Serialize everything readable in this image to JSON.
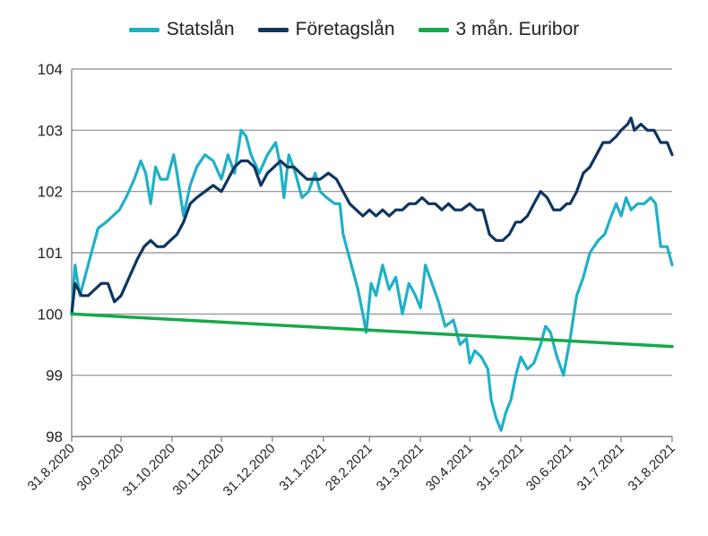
{
  "chart_data": {
    "type": "line",
    "title": "",
    "xlabel": "",
    "ylabel": "",
    "ylim": [
      98,
      104
    ],
    "yticks": [
      "104",
      "103",
      "102",
      "101",
      "100",
      "99",
      "98"
    ],
    "x_range": [
      "2020-08-31",
      "2021-08-31"
    ],
    "xticks": [
      "31.8.2020",
      "30.9.2020",
      "31.10.2020",
      "30.11.2020",
      "31.12.2020",
      "31.1.2021",
      "28.2.2021",
      "31.3.2021",
      "30.4.2021",
      "31.5.2021",
      "30.6.2021",
      "31.7.2021",
      "31.8.2021"
    ],
    "grid": true,
    "legend": "top",
    "series": [
      {
        "name": "Statslån",
        "color": "#1fb0c8",
        "points": [
          [
            "2020-08-31",
            100.0
          ],
          [
            "2020-09-02",
            100.8
          ],
          [
            "2020-09-05",
            100.3
          ],
          [
            "2020-09-08",
            100.6
          ],
          [
            "2020-09-12",
            101.0
          ],
          [
            "2020-09-16",
            101.4
          ],
          [
            "2020-09-21",
            101.5
          ],
          [
            "2020-09-25",
            101.6
          ],
          [
            "2020-09-29",
            101.7
          ],
          [
            "2020-10-03",
            101.9
          ],
          [
            "2020-10-08",
            102.2
          ],
          [
            "2020-10-12",
            102.5
          ],
          [
            "2020-10-15",
            102.3
          ],
          [
            "2020-10-18",
            101.8
          ],
          [
            "2020-10-21",
            102.4
          ],
          [
            "2020-10-24",
            102.2
          ],
          [
            "2020-10-28",
            102.2
          ],
          [
            "2020-11-01",
            102.6
          ],
          [
            "2020-11-03",
            102.3
          ],
          [
            "2020-11-07",
            101.6
          ],
          [
            "2020-11-11",
            102.1
          ],
          [
            "2020-11-15",
            102.4
          ],
          [
            "2020-11-20",
            102.6
          ],
          [
            "2020-11-25",
            102.5
          ],
          [
            "2020-11-30",
            102.2
          ],
          [
            "2020-12-04",
            102.6
          ],
          [
            "2020-12-08",
            102.3
          ],
          [
            "2020-12-12",
            103.0
          ],
          [
            "2020-12-15",
            102.9
          ],
          [
            "2020-12-18",
            102.6
          ],
          [
            "2020-12-23",
            102.3
          ],
          [
            "2020-12-28",
            102.6
          ],
          [
            "2021-01-02",
            102.8
          ],
          [
            "2021-01-05",
            102.4
          ],
          [
            "2021-01-07",
            101.9
          ],
          [
            "2021-01-10",
            102.6
          ],
          [
            "2021-01-14",
            102.3
          ],
          [
            "2021-01-18",
            101.9
          ],
          [
            "2021-01-22",
            102.0
          ],
          [
            "2021-01-26",
            102.3
          ],
          [
            "2021-01-29",
            102.0
          ],
          [
            "2021-02-02",
            101.9
          ],
          [
            "2021-02-07",
            101.8
          ],
          [
            "2021-02-10",
            101.8
          ],
          [
            "2021-02-12",
            101.3
          ],
          [
            "2021-02-15",
            101.0
          ],
          [
            "2021-02-18",
            100.7
          ],
          [
            "2021-02-21",
            100.4
          ],
          [
            "2021-02-24",
            100.0
          ],
          [
            "2021-02-26",
            99.7
          ],
          [
            "2021-03-01",
            100.5
          ],
          [
            "2021-03-04",
            100.3
          ],
          [
            "2021-03-08",
            100.8
          ],
          [
            "2021-03-12",
            100.4
          ],
          [
            "2021-03-16",
            100.6
          ],
          [
            "2021-03-20",
            100.0
          ],
          [
            "2021-03-24",
            100.5
          ],
          [
            "2021-03-28",
            100.3
          ],
          [
            "2021-03-31",
            100.1
          ],
          [
            "2021-04-03",
            100.8
          ],
          [
            "2021-04-07",
            100.5
          ],
          [
            "2021-04-11",
            100.2
          ],
          [
            "2021-04-15",
            99.8
          ],
          [
            "2021-04-20",
            99.9
          ],
          [
            "2021-04-24",
            99.5
          ],
          [
            "2021-04-28",
            99.6
          ],
          [
            "2021-04-30",
            99.2
          ],
          [
            "2021-05-03",
            99.4
          ],
          [
            "2021-05-07",
            99.3
          ],
          [
            "2021-05-11",
            99.1
          ],
          [
            "2021-05-13",
            98.6
          ],
          [
            "2021-05-16",
            98.3
          ],
          [
            "2021-05-19",
            98.1
          ],
          [
            "2021-05-22",
            98.4
          ],
          [
            "2021-05-25",
            98.6
          ],
          [
            "2021-05-28",
            99.0
          ],
          [
            "2021-05-31",
            99.3
          ],
          [
            "2021-06-04",
            99.1
          ],
          [
            "2021-06-08",
            99.2
          ],
          [
            "2021-06-12",
            99.5
          ],
          [
            "2021-06-15",
            99.8
          ],
          [
            "2021-06-18",
            99.7
          ],
          [
            "2021-06-22",
            99.3
          ],
          [
            "2021-06-26",
            99.0
          ],
          [
            "2021-06-30",
            99.6
          ],
          [
            "2021-07-04",
            100.3
          ],
          [
            "2021-07-08",
            100.6
          ],
          [
            "2021-07-12",
            101.0
          ],
          [
            "2021-07-17",
            101.2
          ],
          [
            "2021-07-21",
            101.3
          ],
          [
            "2021-07-25",
            101.6
          ],
          [
            "2021-07-28",
            101.8
          ],
          [
            "2021-07-31",
            101.6
          ],
          [
            "2021-08-03",
            101.9
          ],
          [
            "2021-08-06",
            101.7
          ],
          [
            "2021-08-10",
            101.8
          ],
          [
            "2021-08-14",
            101.8
          ],
          [
            "2021-08-18",
            101.9
          ],
          [
            "2021-08-21",
            101.8
          ],
          [
            "2021-08-24",
            101.1
          ],
          [
            "2021-08-28",
            101.1
          ],
          [
            "2021-08-31",
            100.8
          ]
        ]
      },
      {
        "name": "Företagslån",
        "color": "#0f3560",
        "points": [
          [
            "2020-08-31",
            100.0
          ],
          [
            "2020-09-02",
            100.5
          ],
          [
            "2020-09-06",
            100.3
          ],
          [
            "2020-09-10",
            100.3
          ],
          [
            "2020-09-14",
            100.4
          ],
          [
            "2020-09-18",
            100.5
          ],
          [
            "2020-09-22",
            100.5
          ],
          [
            "2020-09-26",
            100.2
          ],
          [
            "2020-09-30",
            100.3
          ],
          [
            "2020-10-05",
            100.6
          ],
          [
            "2020-10-10",
            100.9
          ],
          [
            "2020-10-14",
            101.1
          ],
          [
            "2020-10-18",
            101.2
          ],
          [
            "2020-10-22",
            101.1
          ],
          [
            "2020-10-26",
            101.1
          ],
          [
            "2020-10-30",
            101.2
          ],
          [
            "2020-11-03",
            101.3
          ],
          [
            "2020-11-07",
            101.5
          ],
          [
            "2020-11-11",
            101.8
          ],
          [
            "2020-11-15",
            101.9
          ],
          [
            "2020-11-20",
            102.0
          ],
          [
            "2020-11-25",
            102.1
          ],
          [
            "2020-11-30",
            102.0
          ],
          [
            "2020-12-04",
            102.2
          ],
          [
            "2020-12-08",
            102.4
          ],
          [
            "2020-12-12",
            102.5
          ],
          [
            "2020-12-16",
            102.5
          ],
          [
            "2020-12-20",
            102.4
          ],
          [
            "2020-12-24",
            102.1
          ],
          [
            "2020-12-28",
            102.3
          ],
          [
            "2021-01-01",
            102.4
          ],
          [
            "2021-01-05",
            102.5
          ],
          [
            "2021-01-09",
            102.4
          ],
          [
            "2021-01-13",
            102.4
          ],
          [
            "2021-01-17",
            102.3
          ],
          [
            "2021-01-21",
            102.2
          ],
          [
            "2021-01-25",
            102.2
          ],
          [
            "2021-01-29",
            102.2
          ],
          [
            "2021-02-03",
            102.3
          ],
          [
            "2021-02-08",
            102.2
          ],
          [
            "2021-02-12",
            102.0
          ],
          [
            "2021-02-16",
            101.8
          ],
          [
            "2021-02-20",
            101.7
          ],
          [
            "2021-02-24",
            101.6
          ],
          [
            "2021-02-28",
            101.7
          ],
          [
            "2021-03-04",
            101.6
          ],
          [
            "2021-03-08",
            101.7
          ],
          [
            "2021-03-12",
            101.6
          ],
          [
            "2021-03-16",
            101.7
          ],
          [
            "2021-03-20",
            101.7
          ],
          [
            "2021-03-24",
            101.8
          ],
          [
            "2021-03-28",
            101.8
          ],
          [
            "2021-04-01",
            101.9
          ],
          [
            "2021-04-05",
            101.8
          ],
          [
            "2021-04-09",
            101.8
          ],
          [
            "2021-04-13",
            101.7
          ],
          [
            "2021-04-17",
            101.8
          ],
          [
            "2021-04-21",
            101.7
          ],
          [
            "2021-04-25",
            101.7
          ],
          [
            "2021-04-30",
            101.8
          ],
          [
            "2021-05-04",
            101.7
          ],
          [
            "2021-05-08",
            101.7
          ],
          [
            "2021-05-12",
            101.3
          ],
          [
            "2021-05-16",
            101.2
          ],
          [
            "2021-05-20",
            101.2
          ],
          [
            "2021-05-24",
            101.3
          ],
          [
            "2021-05-28",
            101.5
          ],
          [
            "2021-05-31",
            101.5
          ],
          [
            "2021-06-04",
            101.6
          ],
          [
            "2021-06-08",
            101.8
          ],
          [
            "2021-06-12",
            102.0
          ],
          [
            "2021-06-16",
            101.9
          ],
          [
            "2021-06-20",
            101.7
          ],
          [
            "2021-06-24",
            101.7
          ],
          [
            "2021-06-28",
            101.8
          ],
          [
            "2021-06-30",
            101.8
          ],
          [
            "2021-07-04",
            102.0
          ],
          [
            "2021-07-08",
            102.3
          ],
          [
            "2021-07-12",
            102.4
          ],
          [
            "2021-07-16",
            102.6
          ],
          [
            "2021-07-20",
            102.8
          ],
          [
            "2021-07-24",
            102.8
          ],
          [
            "2021-07-28",
            102.9
          ],
          [
            "2021-07-31",
            103.0
          ],
          [
            "2021-08-04",
            103.1
          ],
          [
            "2021-08-06",
            103.2
          ],
          [
            "2021-08-08",
            103.0
          ],
          [
            "2021-08-12",
            103.1
          ],
          [
            "2021-08-16",
            103.0
          ],
          [
            "2021-08-20",
            103.0
          ],
          [
            "2021-08-24",
            102.8
          ],
          [
            "2021-08-28",
            102.8
          ],
          [
            "2021-08-31",
            102.6
          ]
        ]
      },
      {
        "name": "3 mån. Euribor",
        "color": "#17a84b",
        "points": [
          [
            "2020-08-31",
            100.0
          ],
          [
            "2021-08-31",
            99.47
          ]
        ]
      }
    ]
  }
}
